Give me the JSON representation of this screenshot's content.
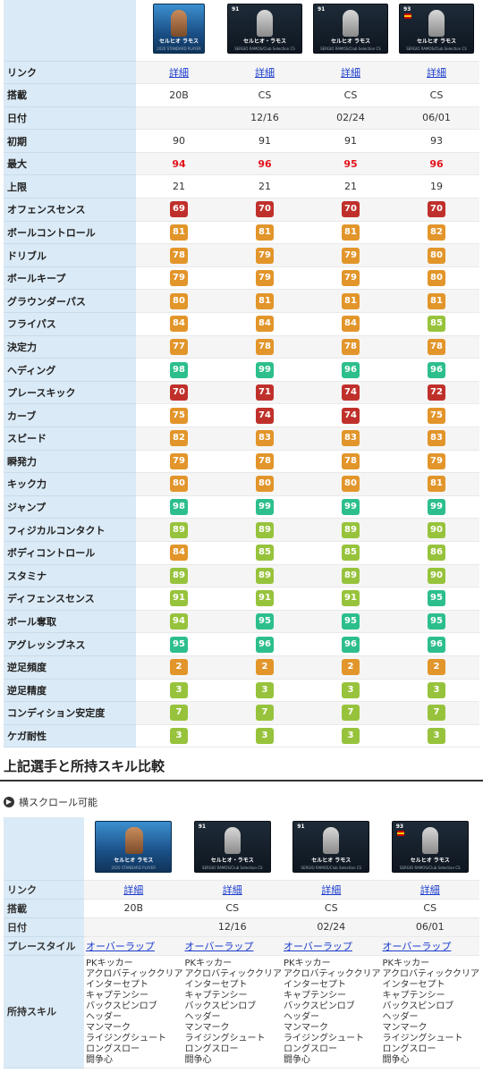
{
  "cards": [
    {
      "name": "セルヒオ ラモス",
      "subtitle": "2020 STANDARD PLAYER",
      "style": "gold",
      "rating": ""
    },
    {
      "name": "セルヒオ・ラモス",
      "subtitle": "SERGIO RAMOS/Club Selection CS",
      "style": "dark",
      "rating": "91"
    },
    {
      "name": "セルヒオ ラモス",
      "subtitle": "SERGIO RAMOS/Club Selection CS",
      "style": "dark",
      "rating": "91"
    },
    {
      "name": "セルヒオ ラモス",
      "subtitle": "SERGIO RAMOS/Club Selection CS",
      "style": "flag",
      "rating": "93"
    }
  ],
  "link_label": "リンク",
  "link_text": "詳細",
  "info_rows": [
    {
      "label": "搭載",
      "values": [
        "20B",
        "CS",
        "CS",
        "CS"
      ],
      "red": false
    },
    {
      "label": "日付",
      "values": [
        "",
        "12/16",
        "02/24",
        "06/01"
      ],
      "red": false
    },
    {
      "label": "初期",
      "values": [
        "90",
        "91",
        "91",
        "93"
      ],
      "red": false
    },
    {
      "label": "最大",
      "values": [
        "94",
        "96",
        "95",
        "96"
      ],
      "red": true
    },
    {
      "label": "上限",
      "values": [
        "21",
        "21",
        "21",
        "19"
      ],
      "red": false
    }
  ],
  "stat_rows": [
    {
      "label": "オフェンスセンス",
      "values": [
        69,
        70,
        70,
        70
      ]
    },
    {
      "label": "ボールコントロール",
      "values": [
        81,
        81,
        81,
        82
      ]
    },
    {
      "label": "ドリブル",
      "values": [
        78,
        79,
        79,
        80
      ]
    },
    {
      "label": "ボールキープ",
      "values": [
        79,
        79,
        79,
        80
      ]
    },
    {
      "label": "グラウンダーパス",
      "values": [
        80,
        81,
        81,
        81
      ]
    },
    {
      "label": "フライパス",
      "values": [
        84,
        84,
        84,
        85
      ]
    },
    {
      "label": "決定力",
      "values": [
        77,
        78,
        78,
        78
      ]
    },
    {
      "label": "ヘディング",
      "values": [
        98,
        99,
        96,
        96
      ]
    },
    {
      "label": "プレースキック",
      "values": [
        70,
        71,
        74,
        72
      ]
    },
    {
      "label": "カーブ",
      "values": [
        75,
        74,
        74,
        75
      ]
    },
    {
      "label": "スピード",
      "values": [
        82,
        83,
        83,
        83
      ]
    },
    {
      "label": "瞬発力",
      "values": [
        79,
        78,
        78,
        79
      ]
    },
    {
      "label": "キック力",
      "values": [
        80,
        80,
        80,
        81
      ]
    },
    {
      "label": "ジャンプ",
      "values": [
        98,
        99,
        99,
        99
      ]
    },
    {
      "label": "フィジカルコンタクト",
      "values": [
        89,
        89,
        89,
        90
      ]
    },
    {
      "label": "ボディコントロール",
      "values": [
        84,
        85,
        85,
        86
      ]
    },
    {
      "label": "スタミナ",
      "values": [
        89,
        89,
        89,
        90
      ]
    },
    {
      "label": "ディフェンスセンス",
      "values": [
        91,
        91,
        91,
        95
      ]
    },
    {
      "label": "ボール奪取",
      "values": [
        94,
        95,
        95,
        95
      ]
    },
    {
      "label": "アグレッシブネス",
      "values": [
        95,
        96,
        96,
        96
      ]
    },
    {
      "label": "逆足頻度",
      "values": [
        2,
        2,
        2,
        2
      ]
    },
    {
      "label": "逆足精度",
      "values": [
        3,
        3,
        3,
        3
      ]
    },
    {
      "label": "コンディション安定度",
      "values": [
        7,
        7,
        7,
        7
      ]
    },
    {
      "label": "ケガ耐性",
      "values": [
        3,
        3,
        3,
        3
      ]
    }
  ],
  "section_title": "上記選手と所持スキル比較",
  "scroll_note": "横スクロール可能",
  "skill_table": {
    "rows": [
      {
        "label": "搭載",
        "values": [
          "20B",
          "CS",
          "CS",
          "CS"
        ]
      },
      {
        "label": "日付",
        "values": [
          "",
          "12/16",
          "02/24",
          "06/01"
        ]
      }
    ],
    "playstyle_label": "プレースタイル",
    "playstyle": "オーバーラップ",
    "skills_label": "所持スキル",
    "skills": [
      "PKキッカー",
      "アクロバティッククリア",
      "インターセプト",
      "キャプテンシー",
      "バックスピンロブ",
      "ヘッダー",
      "マンマーク",
      "ライジングシュート",
      "ロングスロー",
      "闘争心"
    ]
  },
  "colors": {
    "red": "#c0302b",
    "orange": "#e2952a",
    "lime": "#97c33c",
    "green": "#2cbf8c",
    "label_bg": "#daeaf6"
  }
}
